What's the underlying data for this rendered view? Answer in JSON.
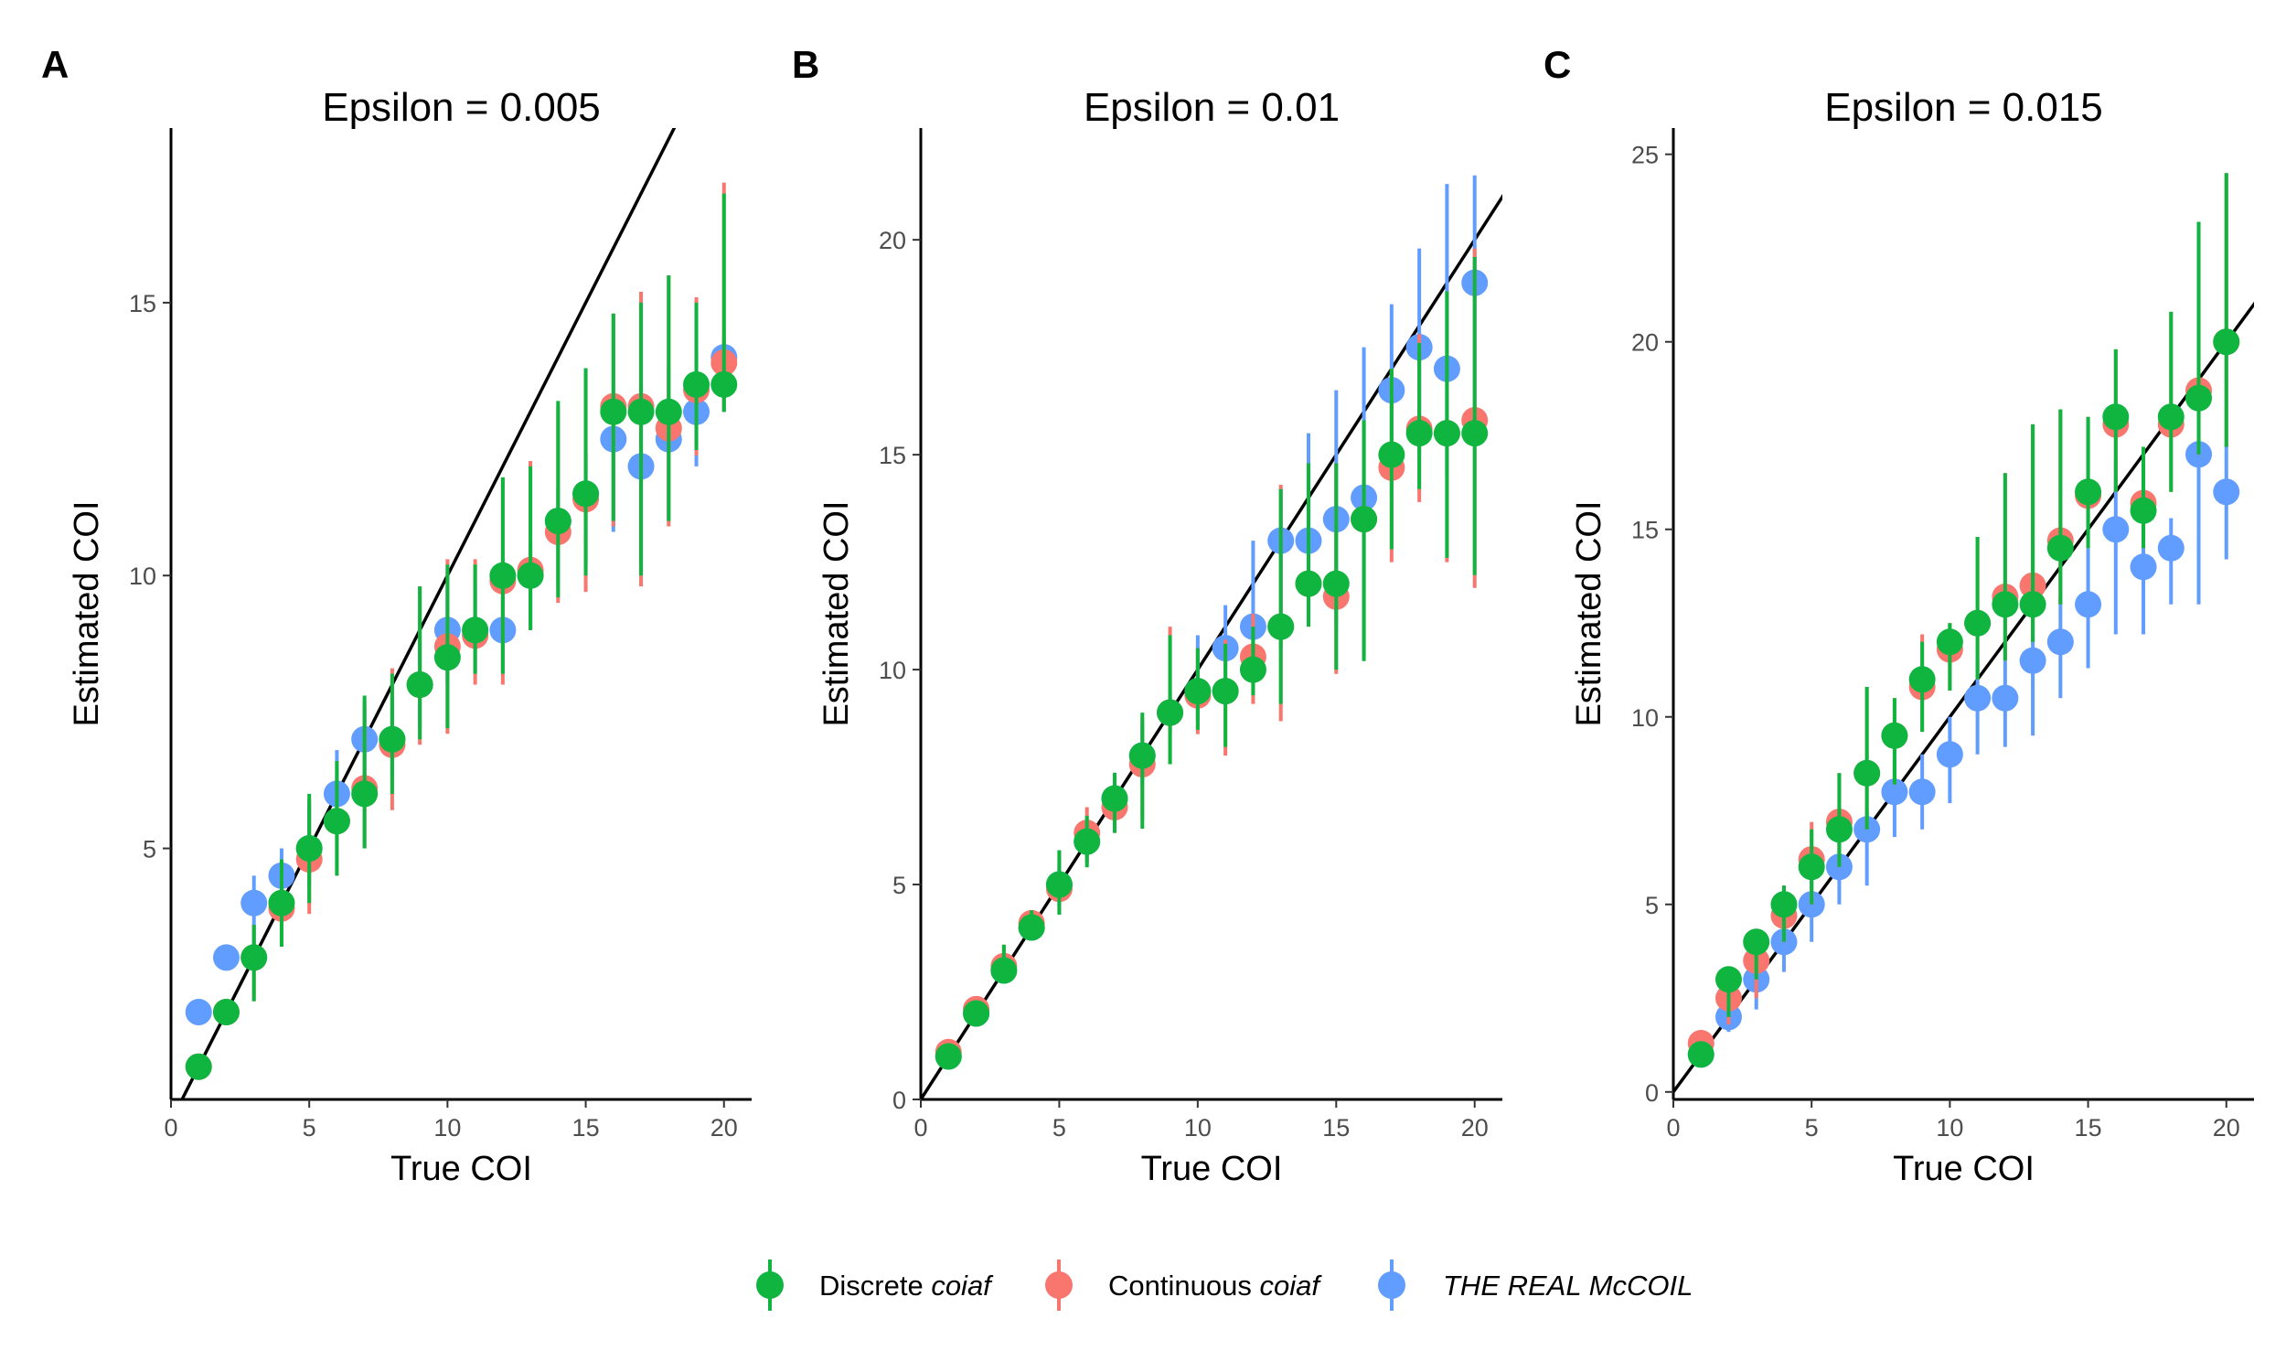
{
  "legend": [
    {
      "prefix": "Discrete ",
      "italic": "coiaf",
      "color": "#0fb53f"
    },
    {
      "prefix": "Continuous ",
      "italic": "coiaf",
      "color": "#f8766d"
    },
    {
      "prefix": "",
      "italic": "THE REAL McCOIL",
      "color": "#619cff"
    }
  ],
  "chart_data": [
    {
      "type": "scatter",
      "panel_letter": "A",
      "title": "Epsilon = 0.005",
      "xlabel": "True COI",
      "ylabel": "Estimated COI",
      "xlim": [
        0,
        21
      ],
      "ylim": [
        0.4,
        18.2
      ],
      "xticks": [
        0,
        5,
        10,
        15,
        20
      ],
      "yticks": [
        5,
        10,
        15
      ],
      "x": [
        1,
        2,
        3,
        4,
        5,
        6,
        7,
        8,
        9,
        10,
        11,
        12,
        13,
        14,
        15,
        16,
        17,
        18,
        19,
        20
      ],
      "reference_line": "y = x",
      "series": [
        {
          "name": "THE REAL McCOIL",
          "color": "#619cff",
          "values": [
            2,
            3,
            4,
            4.5,
            5,
            6,
            7,
            7,
            8,
            9,
            9,
            9,
            10,
            11,
            11.5,
            12.5,
            12,
            12.5,
            13,
            14
          ],
          "lower": [
            2,
            3,
            3.2,
            3.7,
            4.3,
            5.2,
            6.2,
            6.3,
            7.2,
            8,
            8.2,
            8.2,
            9,
            9.8,
            10.2,
            10.8,
            10.2,
            11,
            12,
            13
          ],
          "upper": [
            2,
            3,
            4.5,
            5,
            5.8,
            6.8,
            7.6,
            7.8,
            8.8,
            9.8,
            9.8,
            9.6,
            10.6,
            11.6,
            12.2,
            13,
            13.5,
            13.8,
            14,
            14.4
          ]
        },
        {
          "name": "Continuous coiaf",
          "color": "#f8766d",
          "values": [
            1,
            2,
            3,
            3.9,
            4.8,
            5.5,
            6.1,
            6.9,
            8,
            8.7,
            8.9,
            9.9,
            10.1,
            10.8,
            11.4,
            13.1,
            13.1,
            12.7,
            13.4,
            13.9
          ],
          "lower": [
            1,
            2,
            2.2,
            3.2,
            3.8,
            4.5,
            5,
            5.7,
            6.9,
            7.1,
            8,
            8,
            9,
            9.5,
            9.7,
            10.9,
            9.8,
            10.9,
            12.2,
            13
          ],
          "upper": [
            1,
            2,
            3.6,
            4.8,
            5.9,
            6.6,
            7.7,
            8.3,
            9.8,
            10.3,
            10.3,
            11.8,
            12.1,
            13.1,
            13.7,
            14.8,
            15.2,
            15.5,
            15.1,
            17.2
          ]
        },
        {
          "name": "Discrete coiaf",
          "color": "#0fb53f",
          "values": [
            1,
            2,
            3,
            4,
            5,
            5.5,
            6,
            7,
            8,
            8.5,
            9,
            10,
            10,
            11,
            11.5,
            13,
            13,
            13,
            13.5,
            13.5
          ],
          "lower": [
            1,
            2,
            2.2,
            3.2,
            4,
            4.5,
            5,
            6,
            7,
            7.2,
            8.2,
            8.2,
            9,
            9.6,
            10,
            11,
            10,
            11,
            12.3,
            13
          ],
          "upper": [
            1,
            2,
            3.6,
            4.8,
            6,
            6.6,
            7.8,
            8.2,
            9.8,
            10.2,
            10.2,
            11.8,
            12,
            13.2,
            13.8,
            14.8,
            15,
            15.5,
            15,
            17
          ]
        }
      ]
    },
    {
      "type": "scatter",
      "panel_letter": "B",
      "title": "Epsilon = 0.01",
      "xlabel": "True COI",
      "ylabel": "Estimated COI",
      "xlim": [
        0,
        21
      ],
      "ylim": [
        0,
        22.6
      ],
      "xticks": [
        0,
        5,
        10,
        15,
        20
      ],
      "yticks": [
        0,
        5,
        10,
        15,
        20
      ],
      "x": [
        1,
        2,
        3,
        4,
        5,
        6,
        7,
        8,
        9,
        10,
        11,
        12,
        13,
        14,
        15,
        16,
        17,
        18,
        19,
        20
      ],
      "reference_line": "y = x",
      "series": [
        {
          "name": "THE REAL McCOIL",
          "color": "#619cff",
          "values": [
            1,
            2,
            3,
            4,
            5,
            6,
            7,
            8,
            9,
            9.5,
            10.5,
            11,
            13,
            13,
            13.5,
            14,
            16.5,
            17.5,
            17,
            19
          ],
          "lower": [
            1,
            2,
            2.8,
            3.8,
            4.5,
            5.5,
            6.5,
            7.3,
            8.5,
            8.8,
            9.2,
            9.8,
            10.5,
            11.5,
            11,
            11.8,
            14,
            15,
            14.5,
            16
          ],
          "upper": [
            1,
            2,
            3.2,
            4.2,
            5.5,
            6.5,
            7.5,
            8.8,
            9.5,
            10.8,
            11.5,
            13,
            14.2,
            15.5,
            16.5,
            17.5,
            18.5,
            19.8,
            21.3,
            21.5
          ]
        },
        {
          "name": "Continuous coiaf",
          "color": "#f8766d",
          "values": [
            1.1,
            2.1,
            3.1,
            4.1,
            4.9,
            6.2,
            6.8,
            7.8,
            9,
            9.4,
            9.5,
            10.3,
            11,
            12,
            11.7,
            13.5,
            14.7,
            15.6,
            15.5,
            15.8
          ],
          "lower": [
            1,
            2,
            2.8,
            3.8,
            4.3,
            5.5,
            6.2,
            6.5,
            7.8,
            8.5,
            8,
            9.2,
            8.8,
            11,
            9.9,
            10.3,
            12.5,
            13.9,
            12.5,
            11.9
          ],
          "upper": [
            1.2,
            2.3,
            3.6,
            4.4,
            5.8,
            6.8,
            7.6,
            8.9,
            11,
            10.5,
            10.7,
            11.3,
            14.3,
            14.8,
            14.8,
            15.8,
            17,
            17.8,
            18.8,
            19.8
          ]
        },
        {
          "name": "Discrete coiaf",
          "color": "#0fb53f",
          "values": [
            1,
            2,
            3,
            4,
            5,
            6,
            7,
            8,
            9,
            9.5,
            9.5,
            10,
            11,
            12,
            12,
            13.5,
            15,
            15.5,
            15.5,
            15.5
          ],
          "lower": [
            1,
            2,
            2.8,
            3.8,
            4.3,
            5.4,
            6.2,
            6.3,
            7.8,
            8.6,
            8.2,
            9.4,
            9.2,
            11,
            10,
            10.2,
            12.8,
            14.2,
            12.6,
            12.2
          ],
          "upper": [
            1,
            2,
            3.6,
            4.4,
            5.8,
            6.6,
            7.6,
            9,
            10.8,
            10.5,
            10.6,
            11,
            14.2,
            14.8,
            14.8,
            15.8,
            17,
            17.6,
            18.8,
            19.6
          ]
        }
      ]
    },
    {
      "type": "scatter",
      "panel_letter": "C",
      "title": "Epsilon = 0.015",
      "xlabel": "True COI",
      "ylabel": "Estimated COI",
      "xlim": [
        0,
        21
      ],
      "ylim": [
        -0.2,
        25.7
      ],
      "xticks": [
        0,
        5,
        10,
        15,
        20
      ],
      "yticks": [
        0,
        5,
        10,
        15,
        20,
        25
      ],
      "x": [
        1,
        2,
        3,
        4,
        5,
        6,
        7,
        8,
        9,
        10,
        11,
        12,
        13,
        14,
        15,
        16,
        17,
        18,
        19,
        20
      ],
      "reference_line": "y = x",
      "series": [
        {
          "name": "THE REAL McCOIL",
          "color": "#619cff",
          "values": [
            1,
            2,
            3,
            4,
            5,
            6,
            7,
            8,
            8,
            9,
            10.5,
            10.5,
            11.5,
            12,
            13,
            15,
            14,
            14.5,
            17,
            16
          ],
          "lower": [
            1,
            1.6,
            2.2,
            3.2,
            4,
            5,
            5.5,
            6.8,
            7,
            7.7,
            9,
            9.2,
            9.5,
            10.5,
            11.3,
            12.2,
            12.2,
            13,
            13,
            14.2
          ],
          "upper": [
            1,
            2.3,
            3.5,
            5.5,
            6,
            7,
            7.5,
            8.8,
            9,
            10,
            11.5,
            11.5,
            13,
            13.2,
            14.5,
            16.8,
            16.3,
            15.3,
            18.8,
            17.3
          ]
        },
        {
          "name": "Continuous coiaf",
          "color": "#f8766d",
          "values": [
            1.3,
            2.5,
            3.5,
            4.7,
            6.2,
            7.2,
            8.5,
            9.5,
            10.8,
            11.8,
            12.5,
            13.2,
            13.5,
            14.7,
            15.9,
            17.8,
            15.7,
            17.8,
            18.7,
            20
          ],
          "lower": [
            1,
            1.8,
            2.5,
            4,
            5,
            6,
            7,
            8.2,
            9.6,
            10.7,
            11,
            11.5,
            12,
            13,
            14.5,
            16,
            14.5,
            16,
            17,
            17.2
          ],
          "upper": [
            1.5,
            3,
            4,
            5.5,
            7.2,
            8.5,
            10.8,
            10.5,
            12.2,
            12.5,
            14.8,
            16.5,
            17.8,
            18.2,
            18,
            19.8,
            17.2,
            20.8,
            23.2,
            24.5
          ]
        },
        {
          "name": "Discrete coiaf",
          "color": "#0fb53f",
          "values": [
            1,
            3,
            4,
            5,
            6,
            7,
            8.5,
            9.5,
            11,
            12,
            12.5,
            13,
            13,
            14.5,
            16,
            18,
            15.5,
            18,
            18.5,
            20
          ],
          "lower": [
            1,
            2,
            3,
            4,
            5,
            6,
            7,
            8.2,
            9.6,
            10.7,
            11,
            11.5,
            12,
            13,
            14.5,
            16,
            14.5,
            16,
            17,
            17.2
          ],
          "upper": [
            1,
            3,
            4,
            5.5,
            7,
            8.5,
            10.8,
            10.5,
            12,
            12.5,
            14.8,
            16.5,
            17.8,
            18.2,
            18,
            19.8,
            17.2,
            20.8,
            23.2,
            24.5
          ]
        }
      ]
    }
  ]
}
